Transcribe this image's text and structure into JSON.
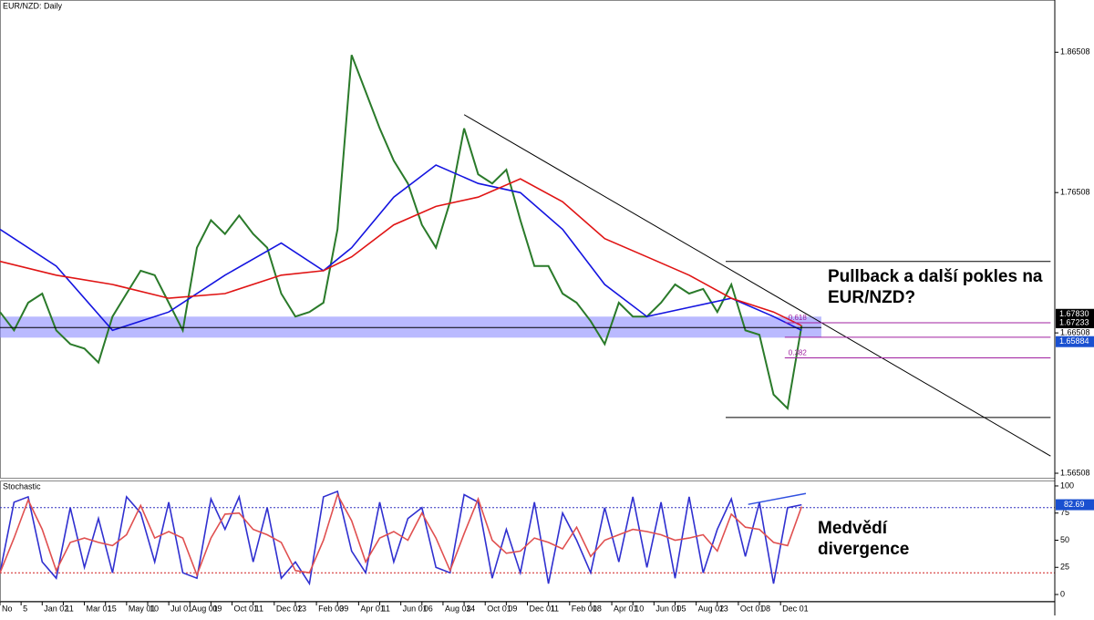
{
  "chart_data": [
    {
      "type": "line",
      "title": "EUR/NZD: Daily",
      "xlim": [
        0,
        75
      ],
      "ylim": [
        1.5612,
        1.9023
      ],
      "yticks": [
        1.86508,
        1.76508,
        1.66508,
        1.56508
      ],
      "series": [
        {
          "color": "#2a7a2a",
          "values": [
            1.68,
            1.6669,
            1.6866,
            1.6931,
            1.6669,
            1.6571,
            1.6539,
            1.644,
            1.6767,
            1.6931,
            1.7094,
            1.7062,
            1.6866,
            1.6669,
            1.7258,
            1.7454,
            1.7356,
            1.7487,
            1.7356,
            1.7258,
            1.6931,
            1.6767,
            1.68,
            1.6866,
            1.7389,
            1.8631,
            1.837,
            1.8108,
            1.7879,
            1.7716,
            1.7421,
            1.7258,
            1.7585,
            1.8108,
            1.7781,
            1.7716,
            1.7814,
            1.7454,
            1.7127,
            1.7127,
            1.6931,
            1.6866,
            1.6735,
            1.6571,
            1.6866,
            1.6767,
            1.6767,
            1.6866,
            1.6996,
            1.6931,
            1.6964,
            1.68,
            1.6996,
            1.6669,
            1.6637,
            1.6212,
            1.6113,
            1.6702
          ]
        },
        {
          "color": "#1414e0",
          "x": [
            0,
            4,
            8,
            12,
            16,
            20,
            23,
            25,
            28,
            31,
            34,
            37,
            40,
            43,
            46,
            49,
            52,
            55,
            57
          ],
          "values": [
            1.7389,
            1.7127,
            1.6669,
            1.68,
            1.7062,
            1.7291,
            1.7094,
            1.7258,
            1.7618,
            1.7847,
            1.7716,
            1.765,
            1.7389,
            1.6996,
            1.6767,
            1.6833,
            1.6898,
            1.6767,
            1.6669
          ]
        },
        {
          "color": "#e01414",
          "x": [
            0,
            4,
            8,
            12,
            16,
            20,
            23,
            25,
            28,
            31,
            34,
            37,
            40,
            43,
            46,
            49,
            52,
            55,
            57
          ],
          "values": [
            1.716,
            1.7062,
            1.6996,
            1.6898,
            1.6931,
            1.7062,
            1.7094,
            1.7193,
            1.7421,
            1.7552,
            1.7618,
            1.7748,
            1.7585,
            1.7323,
            1.7193,
            1.7062,
            1.6898,
            1.68,
            1.6702
          ]
        }
      ],
      "zone": {
        "x": [
          0,
          58.4
        ],
        "y": [
          1.6617,
          1.6767
        ],
        "color": "#8c8cff"
      },
      "lines": [
        {
          "x": [
            0,
            58.4
          ],
          "y": [
            1.6689,
            1.6689
          ],
          "color": "#000000"
        },
        {
          "x": [
            33,
            74.7
          ],
          "y": [
            1.8206,
            1.5773
          ],
          "color": "#000000"
        },
        {
          "x": [
            51.6,
            74.7
          ],
          "y": [
            1.716,
            1.716
          ],
          "color": "#000000"
        },
        {
          "x": [
            51.6,
            74.7
          ],
          "y": [
            1.6048,
            1.6048
          ],
          "color": "#000000"
        },
        {
          "x": [
            55.8,
            74.7
          ],
          "y": [
            1.6723,
            1.6723
          ],
          "color": "#a020a0",
          "label": "0.618"
        },
        {
          "x": [
            55.8,
            74.7
          ],
          "y": [
            1.662,
            1.662
          ],
          "color": "#a020a0"
        },
        {
          "x": [
            55.8,
            74.7
          ],
          "y": [
            1.6473,
            1.6473
          ],
          "color": "#a020a0",
          "label": "0.382"
        }
      ],
      "price_tags": [
        {
          "value": 1.6783,
          "label": "1.67830",
          "color": "#000000"
        },
        {
          "value": 1.67233,
          "label": "1.67233",
          "color": "#000000"
        },
        {
          "value": 1.65884,
          "label": "1.65884",
          "color": "#1a50d0"
        }
      ],
      "annotation": [
        "Pullback a další pokles na",
        "EUR/NZD?"
      ]
    },
    {
      "type": "line",
      "title": "Stochastic",
      "xlim": [
        0,
        75
      ],
      "ylim": [
        -6.7,
        105
      ],
      "yticks": [
        100,
        75,
        50,
        25,
        0
      ],
      "levels": [
        {
          "value": 80,
          "color": "#3030c0"
        },
        {
          "value": 20,
          "color": "#d02020"
        }
      ],
      "series": [
        {
          "color": "#3030d0",
          "values": [
            20,
            85,
            90,
            30,
            15,
            80,
            25,
            70,
            20,
            90,
            75,
            30,
            85,
            20,
            15,
            88,
            60,
            90,
            30,
            80,
            15,
            30,
            10,
            90,
            95,
            40,
            20,
            85,
            30,
            70,
            80,
            25,
            20,
            92,
            85,
            15,
            60,
            20,
            85,
            10,
            75,
            50,
            20,
            80,
            30,
            90,
            25,
            85,
            15,
            90,
            20,
            60,
            88,
            35,
            85,
            10,
            80,
            82.69
          ]
        },
        {
          "color": "#e05050",
          "values": [
            20,
            52,
            87,
            60,
            22,
            48,
            52,
            48,
            45,
            55,
            82,
            52,
            58,
            52,
            18,
            52,
            74,
            75,
            60,
            55,
            48,
            22,
            20,
            50,
            92,
            68,
            30,
            52,
            58,
            50,
            75,
            52,
            22,
            56,
            88,
            50,
            38,
            40,
            52,
            48,
            42,
            62,
            35,
            50,
            55,
            60,
            58,
            55,
            50,
            52,
            55,
            40,
            74,
            62,
            60,
            48,
            45,
            81
          ]
        }
      ],
      "lines": [
        {
          "x": [
            53.2,
            57.3
          ],
          "y": [
            83,
            93
          ],
          "color": "#3050e0"
        }
      ],
      "annotation": [
        "Medvědí",
        "divergence"
      ],
      "xticks": [
        {
          "value": 0,
          "label": "No"
        },
        {
          "value": 1.5,
          "label": "5"
        },
        {
          "value": 3,
          "label": "Jan 02"
        },
        {
          "value": 4.5,
          "label": "11"
        },
        {
          "value": 6,
          "label": "Mar 01"
        },
        {
          "value": 7.5,
          "label": "15"
        },
        {
          "value": 9,
          "label": "May 01"
        },
        {
          "value": 10.5,
          "label": "10"
        },
        {
          "value": 12,
          "label": "Jul 01"
        },
        {
          "value": 13.5,
          "label": "Aug 01"
        },
        {
          "value": 15,
          "label": "09"
        },
        {
          "value": 16.5,
          "label": "Oct 01"
        },
        {
          "value": 18,
          "label": "11"
        },
        {
          "value": 19.5,
          "label": "Dec 02"
        },
        {
          "value": 21,
          "label": "13"
        },
        {
          "value": 22.5,
          "label": "Feb 03"
        },
        {
          "value": 24,
          "label": "09"
        },
        {
          "value": 25.5,
          "label": "Apr 01"
        },
        {
          "value": 27,
          "label": "11"
        },
        {
          "value": 28.5,
          "label": "Jun 01"
        },
        {
          "value": 30,
          "label": "06"
        },
        {
          "value": 31.5,
          "label": "Aug 03"
        },
        {
          "value": 33,
          "label": "14"
        },
        {
          "value": 34.5,
          "label": "Oct 01"
        },
        {
          "value": 36,
          "label": "09"
        },
        {
          "value": 37.5,
          "label": "Dec 01"
        },
        {
          "value": 39,
          "label": "11"
        },
        {
          "value": 40.5,
          "label": "Feb 01"
        },
        {
          "value": 42,
          "label": "08"
        },
        {
          "value": 43.5,
          "label": "Apr 01"
        },
        {
          "value": 45,
          "label": "10"
        },
        {
          "value": 46.5,
          "label": "Jun 01"
        },
        {
          "value": 48,
          "label": "05"
        },
        {
          "value": 49.5,
          "label": "Aug 02"
        },
        {
          "value": 51,
          "label": "13"
        },
        {
          "value": 52.5,
          "label": "Oct 01"
        },
        {
          "value": 54,
          "label": "08"
        },
        {
          "value": 55.5,
          "label": "Dec 01"
        }
      ]
    }
  ]
}
